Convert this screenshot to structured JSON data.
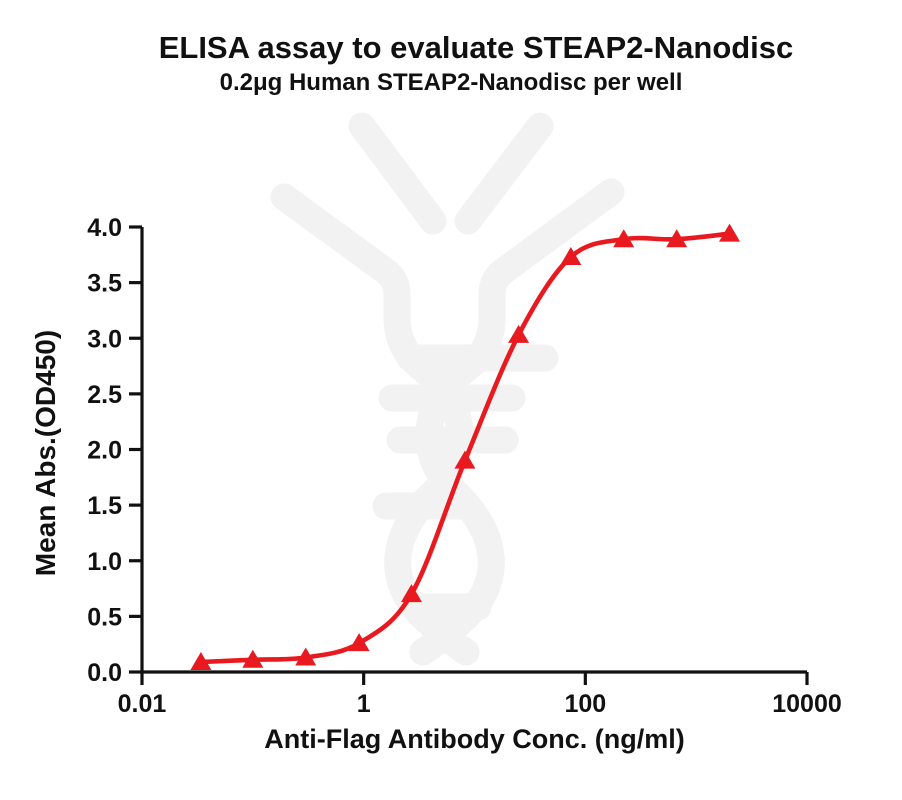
{
  "figure": {
    "title": "ELISA assay to evaluate STEAP2-Nanodisc",
    "subtitle": "0.2μg Human STEAP2-Nanodisc per well",
    "x_axis_label": "Anti-Flag Antibody Conc. (ng/ml)",
    "y_axis_label": "Mean Abs.(OD450)",
    "axis_color": "#111111",
    "curve_color": "#e8191f",
    "watermark_color": "#f2f2f2"
  },
  "chart_data": {
    "type": "line",
    "x_scale": "log10",
    "title": "ELISA assay to evaluate STEAP2-Nanodisc",
    "subtitle": "0.2μg Human STEAP2-Nanodisc per well",
    "xlabel": "Anti-Flag Antibody Conc. (ng/ml)",
    "ylabel": "Mean Abs.(OD450)",
    "xlim": [
      0.01,
      10000
    ],
    "ylim": [
      0.0,
      4.0
    ],
    "grid": false,
    "legend": "none",
    "x_ticks": [
      {
        "value": 0.01,
        "label": "0.01"
      },
      {
        "value": 1,
        "label": "1"
      },
      {
        "value": 100,
        "label": "100"
      },
      {
        "value": 10000,
        "label": "10000"
      }
    ],
    "y_ticks": [
      {
        "value": 0.0,
        "label": "0.0"
      },
      {
        "value": 0.5,
        "label": "0.5"
      },
      {
        "value": 1.0,
        "label": "1.0"
      },
      {
        "value": 1.5,
        "label": "1.5"
      },
      {
        "value": 2.0,
        "label": "2.0"
      },
      {
        "value": 2.5,
        "label": "2.5"
      },
      {
        "value": 3.0,
        "label": "3.0"
      },
      {
        "value": 3.5,
        "label": "3.5"
      },
      {
        "value": 4.0,
        "label": "4.0"
      }
    ],
    "series": [
      {
        "name": "Human STEAP2-Nanodisc",
        "marker": "triangle-up",
        "color": "#e8191f",
        "points": [
          {
            "x": 0.034,
            "y": 0.09
          },
          {
            "x": 0.1,
            "y": 0.11
          },
          {
            "x": 0.3,
            "y": 0.13
          },
          {
            "x": 0.91,
            "y": 0.26
          },
          {
            "x": 2.7,
            "y": 0.7
          },
          {
            "x": 8.2,
            "y": 1.9
          },
          {
            "x": 25,
            "y": 3.03
          },
          {
            "x": 74,
            "y": 3.73
          },
          {
            "x": 222,
            "y": 3.89
          },
          {
            "x": 667,
            "y": 3.89
          },
          {
            "x": 2000,
            "y": 3.94
          }
        ]
      }
    ],
    "fit": {
      "model": "4PL",
      "bottom": 0.08,
      "top": 3.95,
      "ec50": 9.2,
      "hill": 1.2
    }
  }
}
